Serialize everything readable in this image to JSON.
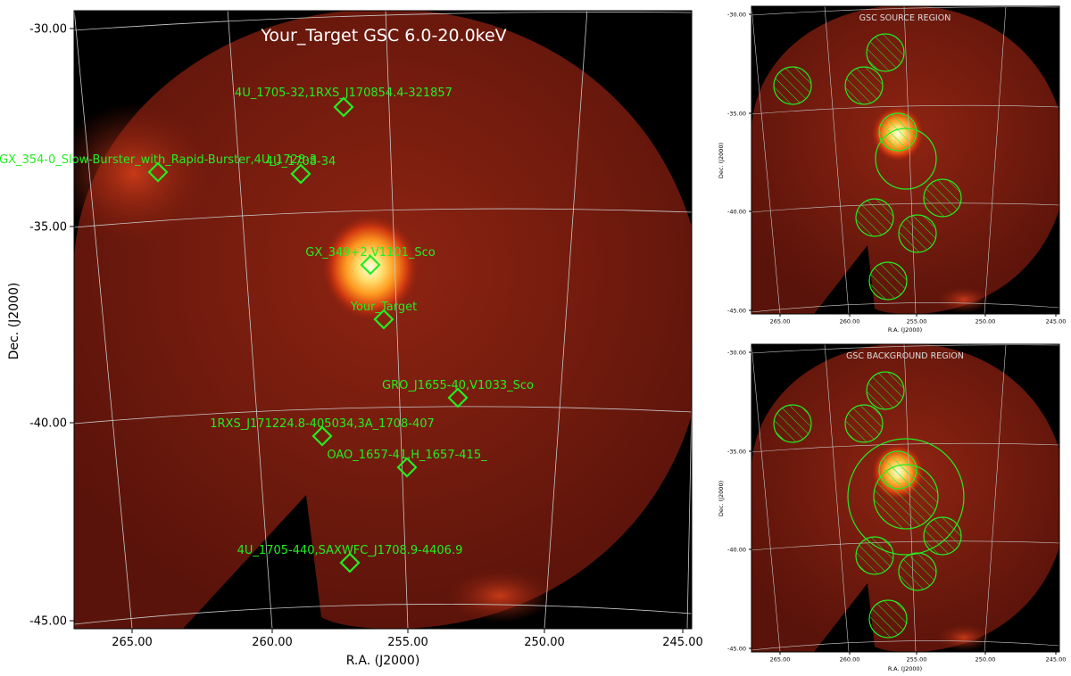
{
  "main": {
    "title": "Your_Target GSC 6.0-20.0keV",
    "xlabel": "R.A. (J2000)",
    "ylabel": "Dec. (J2000)",
    "x_ticks": [
      "265.00",
      "260.00",
      "255.00",
      "250.00",
      "245.00"
    ],
    "y_ticks": [
      "-30.00",
      "-35.00",
      "-40.00",
      "-45.00"
    ],
    "sources": [
      {
        "label": "4U_1705-32,1RXS_J170854.4-321857"
      },
      {
        "label": "GX_354-0_Slow-Burster_with_Rapid-Burster,4U_1728-3"
      },
      {
        "label": "4U_1708-34"
      },
      {
        "label": "GX_349+2,V1101_Sco"
      },
      {
        "label": "Your_Target"
      },
      {
        "label": "GRO_J1655-40,V1033_Sco"
      },
      {
        "label": "1RXS_J171224.8-405034,3A_1708-407"
      },
      {
        "label": "OAO_1657-41,H_1657-415_"
      },
      {
        "label": "4U_1705-440,SAXWFC_J1708.9-4406.9"
      }
    ],
    "colors": {
      "marker": "#22ee22",
      "image_bg": "#000000",
      "grid": "#bbbbbb"
    }
  },
  "source_panel": {
    "title": "GSC SOURCE REGION",
    "xlabel": "R.A. (J2000)",
    "ylabel": "Dec. (J2000)",
    "x_ticks": [
      "265.00",
      "260.00",
      "255.00",
      "250.00",
      "245.00"
    ],
    "y_ticks": [
      "-30.00",
      "-35.00",
      "-40.00",
      "-45.00"
    ]
  },
  "background_panel": {
    "title": "GSC BACKGROUND REGION",
    "xlabel": "R.A. (J2000)",
    "ylabel": "Dec. (J2000)",
    "x_ticks": [
      "265.00",
      "260.00",
      "255.00",
      "250.00",
      "245.00"
    ],
    "y_ticks": [
      "-30.00",
      "-35.00",
      "-40.00",
      "-45.00"
    ]
  }
}
